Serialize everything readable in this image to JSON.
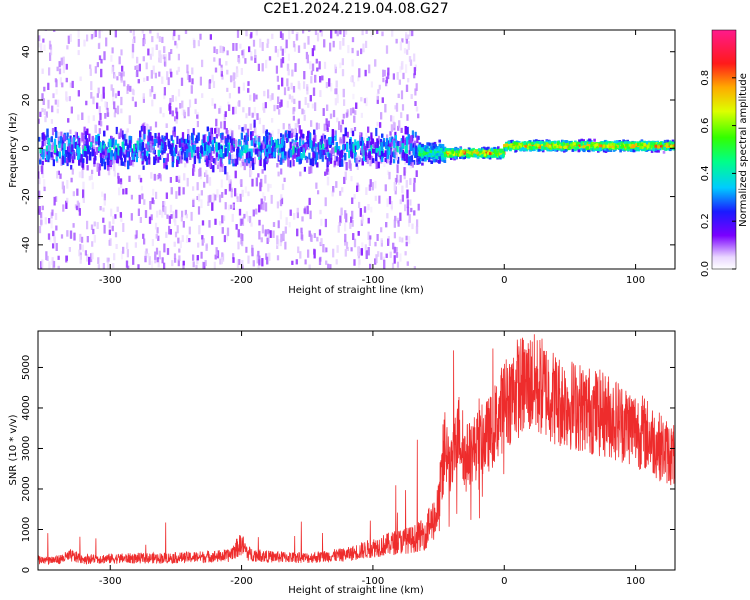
{
  "figure": {
    "title": "C2E1.2024.219.04.08.G27"
  },
  "chart_data": [
    {
      "type": "heatmap",
      "xlabel": "Height of straight line (km)",
      "ylabel": "Frequency (Hz)",
      "xlim": [
        -355,
        130
      ],
      "ylim": [
        -50,
        49
      ],
      "xticks": [
        -300,
        -200,
        -100,
        0,
        100
      ],
      "yticks": [
        -40,
        -20,
        0,
        20,
        40
      ],
      "xtick_labels": [
        "-300",
        "-200",
        "-100",
        "0",
        "100"
      ],
      "ytick_labels": [
        "-40",
        "-20",
        "0",
        "20",
        "40"
      ],
      "colorbar": {
        "label": "Normalized spectral amplitude",
        "range": [
          0,
          1
        ],
        "ticks": [
          0.0,
          0.2,
          0.4,
          0.6,
          0.8
        ],
        "tick_labels": [
          "0.0",
          "0.2",
          "0.4",
          "0.6",
          "0.8"
        ]
      },
      "regions": [
        {
          "x_range": [
            -355,
            -65
          ],
          "center_hz": 0,
          "core_halfwidth_hz": 6,
          "spread_halfwidth_hz": 50,
          "peak_amplitude": 0.35
        },
        {
          "x_range": [
            -65,
            -45
          ],
          "center_hz": -2,
          "core_halfwidth_hz": 3,
          "spread_halfwidth_hz": 8,
          "peak_amplitude": 0.55
        },
        {
          "x_range": [
            -45,
            0
          ],
          "center_hz": -2,
          "core_halfwidth_hz": 1.5,
          "spread_halfwidth_hz": 3,
          "peak_amplitude": 0.95
        },
        {
          "x_range": [
            0,
            130
          ],
          "center_hz": 1,
          "core_halfwidth_hz": 1.5,
          "spread_halfwidth_hz": 3,
          "peak_amplitude": 0.9
        }
      ]
    },
    {
      "type": "line",
      "xlabel": "Height of straight line (km)",
      "ylabel": "SNR (10 * v/v)",
      "xlim": [
        -355,
        130
      ],
      "ylim": [
        0,
        5900
      ],
      "xticks": [
        -300,
        -200,
        -100,
        0,
        100
      ],
      "yticks": [
        0,
        1000,
        2000,
        3000,
        4000,
        5000
      ],
      "xtick_labels": [
        "-300",
        "-200",
        "-100",
        "0",
        "100"
      ],
      "ytick_labels": [
        "0",
        "1000",
        "2000",
        "3000",
        "4000",
        "5000"
      ],
      "color": "#ee2c2c",
      "series": [
        {
          "x": [
            -355,
            -340,
            -330,
            -320,
            -300,
            -250,
            -210,
            -200,
            -195,
            -180,
            -150,
            -120,
            -100,
            -80,
            -70,
            -60,
            -50,
            -45,
            -40,
            -35,
            -30,
            -20,
            -10,
            0,
            10,
            20,
            30,
            40,
            60,
            80,
            100,
            110,
            120,
            130
          ],
          "y": [
            250,
            250,
            350,
            270,
            280,
            300,
            350,
            650,
            400,
            330,
            300,
            380,
            550,
            700,
            750,
            900,
            1500,
            3000,
            2500,
            3500,
            2800,
            3100,
            3400,
            4100,
            4500,
            4600,
            4500,
            4200,
            4000,
            3800,
            3500,
            3300,
            3000,
            2800
          ]
        }
      ]
    }
  ]
}
